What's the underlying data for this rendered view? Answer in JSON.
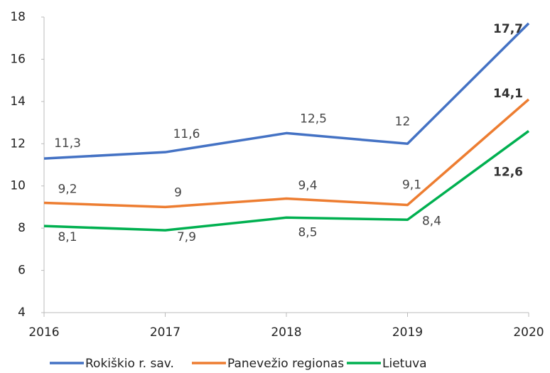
{
  "chart_data": {
    "type": "line",
    "x": [
      2016,
      2017,
      2018,
      2019,
      2020
    ],
    "xlim": [
      2016,
      2020
    ],
    "xticks": [
      2016,
      2017,
      2018,
      2019,
      2020
    ],
    "ylim": [
      4,
      18
    ],
    "yticks": [
      4,
      6,
      8,
      10,
      12,
      14,
      16,
      18
    ],
    "grid": false,
    "legend": "bottom",
    "series": [
      {
        "name": "Rokiškio r. sav.",
        "color": "#4472c4",
        "values": [
          11.3,
          11.6,
          12.5,
          12,
          17.7
        ],
        "value_labels": [
          "11,3",
          "11,6",
          "12,5",
          "12",
          "17,7"
        ]
      },
      {
        "name": "Panevežio regionas",
        "color": "#ed7d31",
        "values": [
          9.2,
          9,
          9.4,
          9.1,
          14.1
        ],
        "value_labels": [
          "9,2",
          "9",
          "9,4",
          "9,1",
          "14,1"
        ]
      },
      {
        "name": "Lietuva",
        "color": "#00b050",
        "values": [
          8.1,
          7.9,
          8.5,
          8.4,
          12.6
        ],
        "value_labels": [
          "8,1",
          "7,9",
          "8,5",
          "8,4",
          "12,6"
        ]
      }
    ]
  }
}
